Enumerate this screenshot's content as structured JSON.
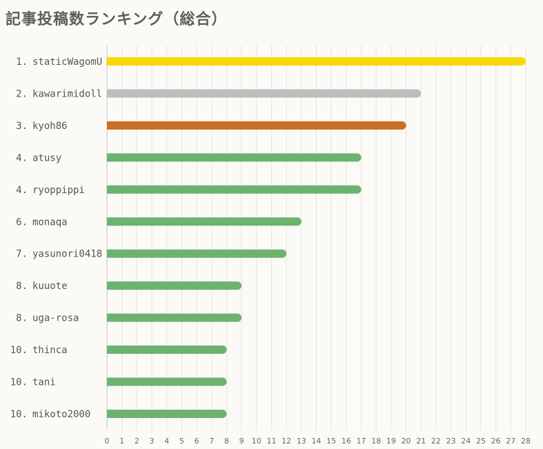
{
  "title": "記事投稿数ランキング（総合）",
  "chart_data": {
    "type": "bar",
    "orientation": "horizontal",
    "title": "記事投稿数ランキング（総合）",
    "xlabel": "",
    "ylabel": "",
    "xlim": [
      0,
      28
    ],
    "x_ticks": [
      0,
      1,
      2,
      3,
      4,
      5,
      6,
      7,
      8,
      9,
      10,
      11,
      12,
      13,
      14,
      15,
      16,
      17,
      18,
      19,
      20,
      21,
      22,
      23,
      24,
      25,
      26,
      27,
      28
    ],
    "grid": "vertical",
    "legend": "none",
    "categories": [
      "1. staticWagomU",
      "2. kawarimidoll",
      "3. kyoh86",
      "4. atusy",
      "4. ryoppippi",
      "6. monaqa",
      "7. yasunori0418",
      "8. kuuote",
      "8. uga-rosa",
      "10. thinca",
      "10. tani",
      "10. mikoto2000"
    ],
    "values": [
      28,
      21,
      20,
      17,
      17,
      13,
      12,
      9,
      9,
      8,
      8,
      8
    ],
    "bar_colors": [
      "#f7d800",
      "#bdbdbd",
      "#c87126",
      "#6db26d",
      "#6db26d",
      "#6db26d",
      "#6db26d",
      "#6db26d",
      "#6db26d",
      "#6db26d",
      "#6db26d",
      "#6db26d"
    ]
  }
}
